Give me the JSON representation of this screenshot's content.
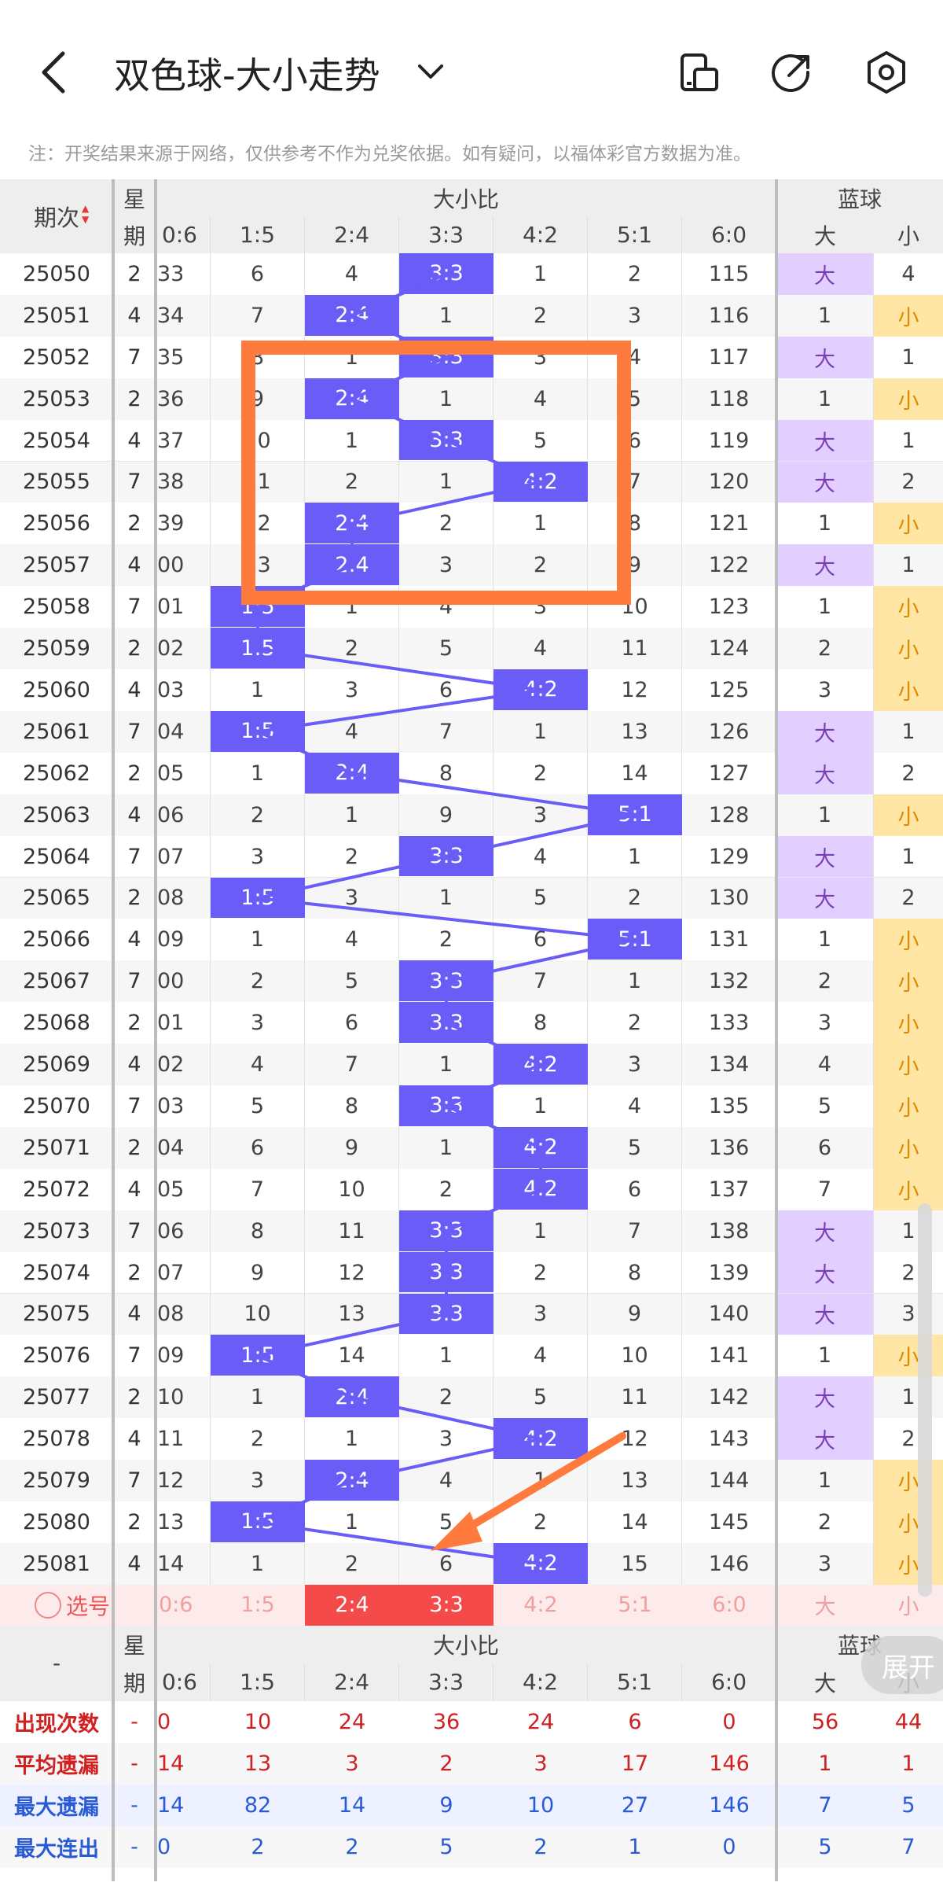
{
  "header": {
    "title": "双色球-大小走势",
    "notice": "注：开奖结果来源于网络，仅供参考不作为兑奖依据。如有疑问，以福体彩官方数据为准。",
    "icons": [
      "back-arrow-icon",
      "chevron-down-icon",
      "device-icon",
      "share-icon",
      "settings-icon"
    ]
  },
  "table": {
    "period_header": "期次",
    "weekday_header": [
      "星",
      "期"
    ],
    "ratio_group_header": "大小比",
    "blue_group_header": "蓝球",
    "ratio_columns": [
      "0:6",
      "1:5",
      "2:4",
      "3:3",
      "4:2",
      "5:1",
      "6:0"
    ],
    "blue_columns": [
      "大",
      "小"
    ],
    "rows": [
      {
        "period": "25050",
        "week": "2",
        "cells": [
          "33",
          "6",
          "4",
          "3:3",
          "1",
          "2",
          "115"
        ],
        "hit": 3,
        "big": "大",
        "small": "4",
        "blue": "big"
      },
      {
        "period": "25051",
        "week": "4",
        "cells": [
          "34",
          "7",
          "2:4",
          "1",
          "2",
          "3",
          "116"
        ],
        "hit": 2,
        "big": "1",
        "small": "小",
        "blue": "small"
      },
      {
        "period": "25052",
        "week": "7",
        "cells": [
          "35",
          "8",
          "1",
          "3:3",
          "3",
          "4",
          "117"
        ],
        "hit": 3,
        "big": "大",
        "small": "1",
        "blue": "big"
      },
      {
        "period": "25053",
        "week": "2",
        "cells": [
          "36",
          "9",
          "2:4",
          "1",
          "4",
          "5",
          "118"
        ],
        "hit": 2,
        "big": "1",
        "small": "小",
        "blue": "small"
      },
      {
        "period": "25054",
        "week": "4",
        "cells": [
          "37",
          "10",
          "1",
          "3:3",
          "5",
          "6",
          "119"
        ],
        "hit": 3,
        "big": "大",
        "small": "1",
        "blue": "big"
      },
      {
        "period": "25055",
        "week": "7",
        "cells": [
          "38",
          "11",
          "2",
          "1",
          "4:2",
          "7",
          "120"
        ],
        "hit": 4,
        "big": "大",
        "small": "2",
        "blue": "big"
      },
      {
        "period": "25056",
        "week": "2",
        "cells": [
          "39",
          "12",
          "2:4",
          "2",
          "1",
          "8",
          "121"
        ],
        "hit": 2,
        "big": "1",
        "small": "小",
        "blue": "small"
      },
      {
        "period": "25057",
        "week": "4",
        "cells": [
          "00",
          "13",
          "2:4",
          "3",
          "2",
          "9",
          "122"
        ],
        "hit": 2,
        "big": "大",
        "small": "1",
        "blue": "big"
      },
      {
        "period": "25058",
        "week": "7",
        "cells": [
          "01",
          "1:5",
          "1",
          "4",
          "3",
          "10",
          "123"
        ],
        "hit": 1,
        "big": "1",
        "small": "小",
        "blue": "small"
      },
      {
        "period": "25059",
        "week": "2",
        "cells": [
          "02",
          "1:5",
          "2",
          "5",
          "4",
          "11",
          "124"
        ],
        "hit": 1,
        "big": "2",
        "small": "小",
        "blue": "small"
      },
      {
        "period": "25060",
        "week": "4",
        "cells": [
          "03",
          "1",
          "3",
          "6",
          "4:2",
          "12",
          "125"
        ],
        "hit": 4,
        "big": "3",
        "small": "小",
        "blue": "small"
      },
      {
        "period": "25061",
        "week": "7",
        "cells": [
          "04",
          "1:5",
          "4",
          "7",
          "1",
          "13",
          "126"
        ],
        "hit": 1,
        "big": "大",
        "small": "1",
        "blue": "big"
      },
      {
        "period": "25062",
        "week": "2",
        "cells": [
          "05",
          "1",
          "2:4",
          "8",
          "2",
          "14",
          "127"
        ],
        "hit": 2,
        "big": "大",
        "small": "2",
        "blue": "big"
      },
      {
        "period": "25063",
        "week": "4",
        "cells": [
          "06",
          "2",
          "1",
          "9",
          "3",
          "5:1",
          "128"
        ],
        "hit": 5,
        "big": "1",
        "small": "小",
        "blue": "small"
      },
      {
        "period": "25064",
        "week": "7",
        "cells": [
          "07",
          "3",
          "2",
          "3:3",
          "4",
          "1",
          "129"
        ],
        "hit": 3,
        "big": "大",
        "small": "1",
        "blue": "big"
      },
      {
        "period": "25065",
        "week": "2",
        "cells": [
          "08",
          "1:5",
          "3",
          "1",
          "5",
          "2",
          "130"
        ],
        "hit": 1,
        "big": "大",
        "small": "2",
        "blue": "big"
      },
      {
        "period": "25066",
        "week": "4",
        "cells": [
          "09",
          "1",
          "4",
          "2",
          "6",
          "5:1",
          "131"
        ],
        "hit": 5,
        "big": "1",
        "small": "小",
        "blue": "small"
      },
      {
        "period": "25067",
        "week": "7",
        "cells": [
          "00",
          "2",
          "5",
          "3:3",
          "7",
          "1",
          "132"
        ],
        "hit": 3,
        "big": "2",
        "small": "小",
        "blue": "small"
      },
      {
        "period": "25068",
        "week": "2",
        "cells": [
          "01",
          "3",
          "6",
          "3:3",
          "8",
          "2",
          "133"
        ],
        "hit": 3,
        "big": "3",
        "small": "小",
        "blue": "small"
      },
      {
        "period": "25069",
        "week": "4",
        "cells": [
          "02",
          "4",
          "7",
          "1",
          "4:2",
          "3",
          "134"
        ],
        "hit": 4,
        "big": "4",
        "small": "小",
        "blue": "small"
      },
      {
        "period": "25070",
        "week": "7",
        "cells": [
          "03",
          "5",
          "8",
          "3:3",
          "1",
          "4",
          "135"
        ],
        "hit": 3,
        "big": "5",
        "small": "小",
        "blue": "small"
      },
      {
        "period": "25071",
        "week": "2",
        "cells": [
          "04",
          "6",
          "9",
          "1",
          "4:2",
          "5",
          "136"
        ],
        "hit": 4,
        "big": "6",
        "small": "小",
        "blue": "small"
      },
      {
        "period": "25072",
        "week": "4",
        "cells": [
          "05",
          "7",
          "10",
          "2",
          "4:2",
          "6",
          "137"
        ],
        "hit": 4,
        "big": "7",
        "small": "小",
        "blue": "small"
      },
      {
        "period": "25073",
        "week": "7",
        "cells": [
          "06",
          "8",
          "11",
          "3:3",
          "1",
          "7",
          "138"
        ],
        "hit": 3,
        "big": "大",
        "small": "1",
        "blue": "big"
      },
      {
        "period": "25074",
        "week": "2",
        "cells": [
          "07",
          "9",
          "12",
          "3:3",
          "2",
          "8",
          "139"
        ],
        "hit": 3,
        "big": "大",
        "small": "2",
        "blue": "big"
      },
      {
        "period": "25075",
        "week": "4",
        "cells": [
          "08",
          "10",
          "13",
          "3:3",
          "3",
          "9",
          "140"
        ],
        "hit": 3,
        "big": "大",
        "small": "3",
        "blue": "big"
      },
      {
        "period": "25076",
        "week": "7",
        "cells": [
          "09",
          "1:5",
          "14",
          "1",
          "4",
          "10",
          "141"
        ],
        "hit": 1,
        "big": "1",
        "small": "小",
        "blue": "small"
      },
      {
        "period": "25077",
        "week": "2",
        "cells": [
          "10",
          "1",
          "2:4",
          "2",
          "5",
          "11",
          "142"
        ],
        "hit": 2,
        "big": "大",
        "small": "1",
        "blue": "big"
      },
      {
        "period": "25078",
        "week": "4",
        "cells": [
          "11",
          "2",
          "1",
          "3",
          "4:2",
          "12",
          "143"
        ],
        "hit": 4,
        "big": "大",
        "small": "2",
        "blue": "big"
      },
      {
        "period": "25079",
        "week": "7",
        "cells": [
          "12",
          "3",
          "2:4",
          "4",
          "1",
          "13",
          "144"
        ],
        "hit": 2,
        "big": "1",
        "small": "小",
        "blue": "small"
      },
      {
        "period": "25080",
        "week": "2",
        "cells": [
          "13",
          "1:5",
          "1",
          "5",
          "2",
          "14",
          "145"
        ],
        "hit": 1,
        "big": "2",
        "small": "小",
        "blue": "small"
      },
      {
        "period": "25081",
        "week": "4",
        "cells": [
          "14",
          "1",
          "2",
          "6",
          "4:2",
          "15",
          "146"
        ],
        "hit": 4,
        "big": "3",
        "small": "小",
        "blue": "small"
      }
    ],
    "select_row": {
      "label": "选号",
      "cells": [
        "0:6",
        "1:5",
        "2:4",
        "3:3",
        "4:2",
        "5:1",
        "6:0"
      ],
      "selected": [
        2,
        3
      ],
      "blue": [
        "大",
        "小"
      ]
    },
    "footer_header": {
      "first": "-",
      "weekday": [
        "星",
        "期"
      ],
      "group": "大小比",
      "blue": "蓝球"
    },
    "stats": [
      {
        "label": "出现次数",
        "color": "#d02020",
        "week": "-",
        "cells": [
          "0",
          "10",
          "24",
          "36",
          "24",
          "6",
          "0"
        ],
        "blue": [
          "56",
          "44"
        ]
      },
      {
        "label": "平均遗漏",
        "color": "#d02020",
        "week": "-",
        "cells": [
          "14",
          "13",
          "3",
          "2",
          "3",
          "17",
          "146"
        ],
        "blue": [
          "1",
          "1"
        ]
      },
      {
        "label": "最大遗漏",
        "color": "#2a5bd6",
        "week": "-",
        "cells": [
          "14",
          "82",
          "14",
          "9",
          "10",
          "27",
          "146"
        ],
        "blue": [
          "7",
          "5"
        ]
      },
      {
        "label": "最大连出",
        "color": "#2a5bd6",
        "week": "-",
        "cells": [
          "0",
          "2",
          "2",
          "5",
          "2",
          "1",
          "0"
        ],
        "blue": [
          "5",
          "7"
        ]
      }
    ],
    "expand_label": "展开"
  },
  "colors": {
    "hit": "#6a5cf7",
    "big": "#e3cfff",
    "small": "#ffe6a5",
    "selected": "#f44a4a",
    "highlight_box": "#ff7a3d",
    "arrow": "#ff7a3d"
  }
}
